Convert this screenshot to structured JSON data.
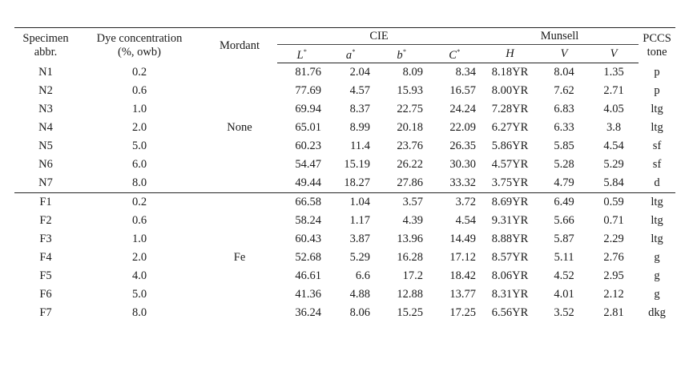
{
  "headers": {
    "specimen": "Specimen abbr.",
    "specimen_l1": "Specimen",
    "specimen_l2": "abbr.",
    "dye_l1": "Dye concentration",
    "dye_l2": "(%, owb)",
    "mordant": "Mordant",
    "cie": "CIE",
    "munsell": "Munsell",
    "pccs_l1": "PCCS",
    "pccs_l2": "tone",
    "sub": [
      "L",
      "a",
      "b",
      "C",
      "H",
      "V",
      "V"
    ],
    "sub_star": [
      "*",
      "*",
      "*",
      "*",
      "",
      "",
      ""
    ]
  },
  "mordants": {
    "none": "None",
    "fe": "Fe"
  },
  "rows_none": [
    [
      "N1",
      "0.2",
      "81.76",
      "2.04",
      "8.09",
      "8.34",
      "8.18YR",
      "8.04",
      "1.35",
      "p"
    ],
    [
      "N2",
      "0.6",
      "77.69",
      "4.57",
      "15.93",
      "16.57",
      "8.00YR",
      "7.62",
      "2.71",
      "p"
    ],
    [
      "N3",
      "1.0",
      "69.94",
      "8.37",
      "22.75",
      "24.24",
      "7.28YR",
      "6.83",
      "4.05",
      "ltg"
    ],
    [
      "N4",
      "2.0",
      "65.01",
      "8.99",
      "20.18",
      "22.09",
      "6.27YR",
      "6.33",
      "3.8",
      "ltg"
    ],
    [
      "N5",
      "5.0",
      "60.23",
      "11.4",
      "23.76",
      "26.35",
      "5.86YR",
      "5.85",
      "4.54",
      "sf"
    ],
    [
      "N6",
      "6.0",
      "54.47",
      "15.19",
      "26.22",
      "30.30",
      "4.57YR",
      "5.28",
      "5.29",
      "sf"
    ],
    [
      "N7",
      "8.0",
      "49.44",
      "18.27",
      "27.86",
      "33.32",
      "3.75YR",
      "4.79",
      "5.84",
      "d"
    ]
  ],
  "rows_fe": [
    [
      "F1",
      "0.2",
      "66.58",
      "1.04",
      "3.57",
      "3.72",
      "8.69YR",
      "6.49",
      "0.59",
      "ltg"
    ],
    [
      "F2",
      "0.6",
      "58.24",
      "1.17",
      "4.39",
      "4.54",
      "9.31YR",
      "5.66",
      "0.71",
      "ltg"
    ],
    [
      "F3",
      "1.0",
      "60.43",
      "3.87",
      "13.96",
      "14.49",
      "8.88YR",
      "5.87",
      "2.29",
      "ltg"
    ],
    [
      "F4",
      "2.0",
      "52.68",
      "5.29",
      "16.28",
      "17.12",
      "8.57YR",
      "5.11",
      "2.76",
      "g"
    ],
    [
      "F5",
      "4.0",
      "46.61",
      "6.6",
      "17.2",
      "18.42",
      "8.06YR",
      "4.52",
      "2.95",
      "g"
    ],
    [
      "F6",
      "5.0",
      "41.36",
      "4.88",
      "12.88",
      "13.77",
      "8.31YR",
      "4.01",
      "2.12",
      "g"
    ],
    [
      "F7",
      "8.0",
      "36.24",
      "8.06",
      "15.25",
      "17.25",
      "6.56YR",
      "3.52",
      "2.81",
      "dkg"
    ]
  ]
}
